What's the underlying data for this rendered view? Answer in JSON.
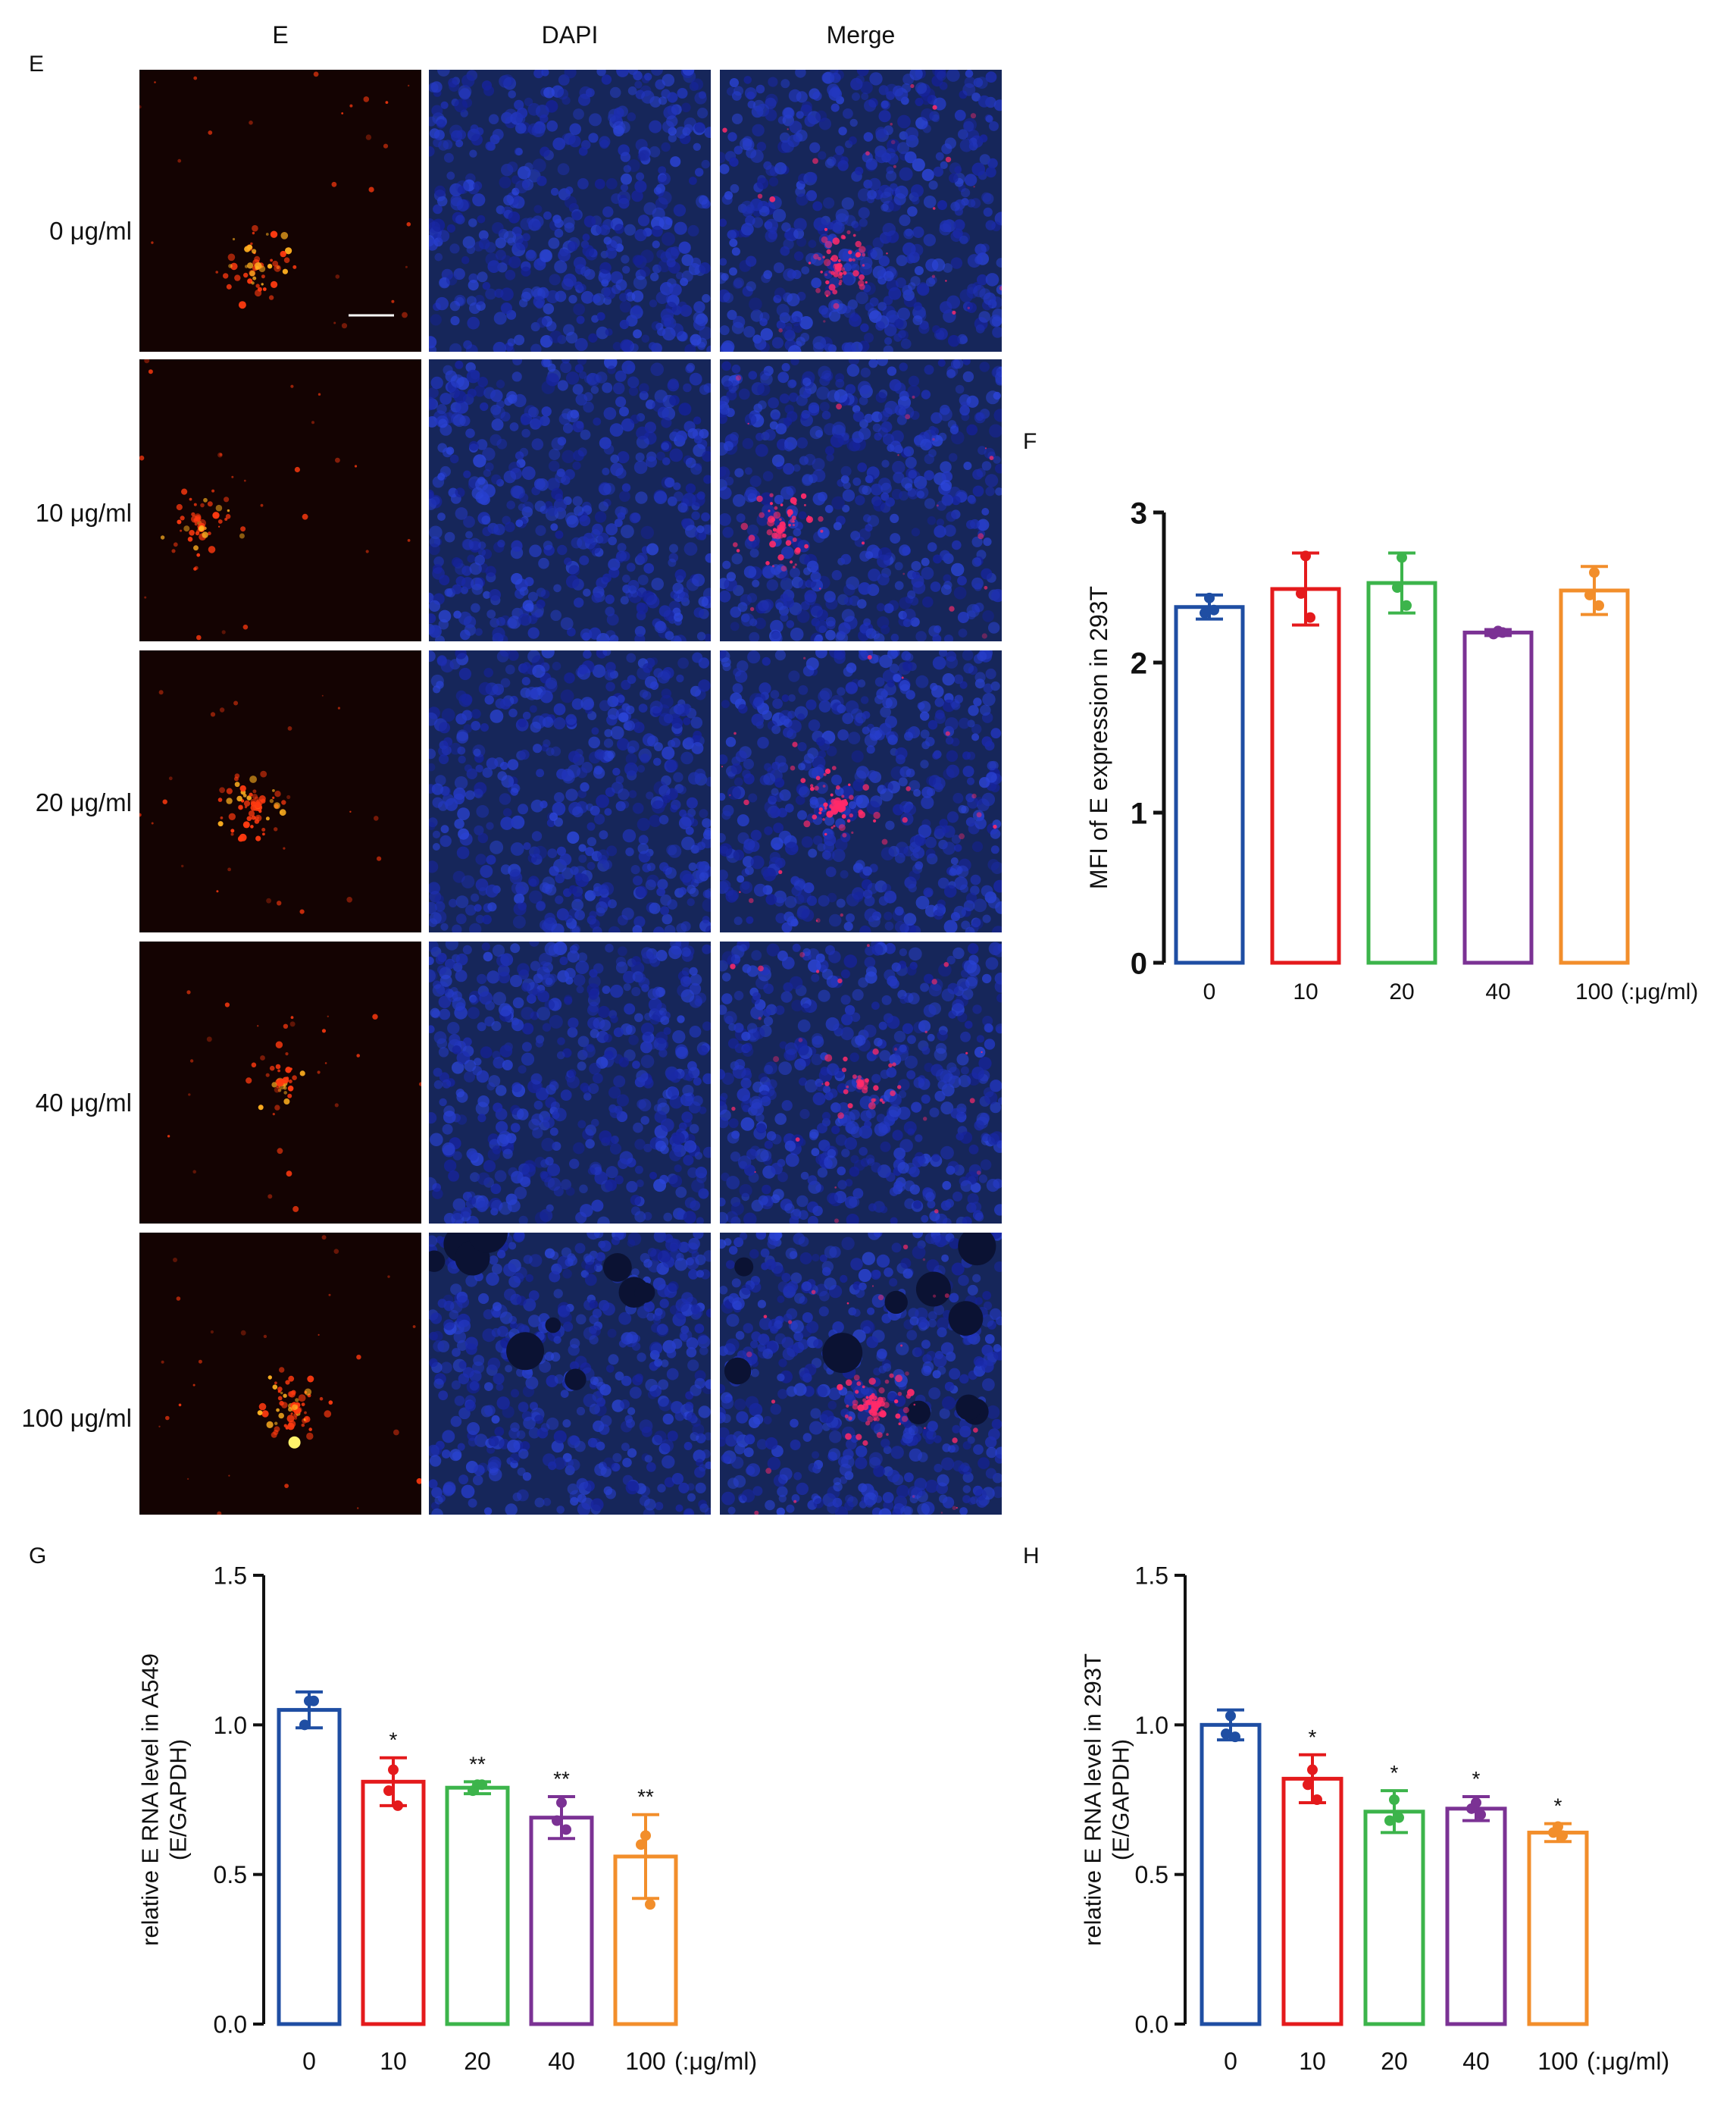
{
  "panel_e": {
    "letter": "E",
    "columns": [
      "E",
      "DAPI",
      "Merge"
    ],
    "rows": [
      "0 μg/ml",
      "10 μg/ml",
      "20 μg/ml",
      "40 μg/ml",
      "100 μg/ml"
    ],
    "channel_colors": {
      "E": "#ff3a10",
      "DAPI": "#2e5ad8",
      "Merge": "#ff2a6a"
    }
  },
  "chart_data": [
    {
      "panel": "F",
      "type": "bar",
      "categories": [
        "0",
        "10",
        "20",
        "40",
        "100"
      ],
      "unit_label": "(:μg/ml)",
      "ylabel": "MFI of E expression in 293T",
      "ylim": [
        0,
        3
      ],
      "yticks": [
        "0",
        "1",
        "2",
        "3"
      ],
      "values": [
        2.37,
        2.49,
        2.53,
        2.2,
        2.48
      ],
      "sd": [
        0.08,
        0.24,
        0.2,
        0.02,
        0.16
      ],
      "points": [
        [
          2.43,
          2.33,
          2.35
        ],
        [
          2.71,
          2.46,
          2.3
        ],
        [
          2.7,
          2.5,
          2.38
        ],
        [
          2.21,
          2.19,
          2.2
        ],
        [
          2.6,
          2.45,
          2.38
        ]
      ],
      "significance": [
        "",
        "",
        "",
        "",
        ""
      ],
      "colors": [
        "#1f4ea3",
        "#e41a1c",
        "#3cb44b",
        "#7b3294",
        "#f28e2b"
      ]
    },
    {
      "panel": "G",
      "type": "bar",
      "categories": [
        "0",
        "10",
        "20",
        "40",
        "100"
      ],
      "unit_label": "(:μg/ml)",
      "ylabel": "relative E RNA level in A549\n(E/GAPDH)",
      "ylim": [
        0,
        1.5
      ],
      "yticks": [
        "0.0",
        "0.5",
        "1.0",
        "1.5"
      ],
      "values": [
        1.05,
        0.81,
        0.79,
        0.69,
        0.56
      ],
      "sd": [
        0.06,
        0.08,
        0.02,
        0.07,
        0.14
      ],
      "points": [
        [
          1.08,
          1.0,
          1.08
        ],
        [
          0.85,
          0.78,
          0.73
        ],
        [
          0.8,
          0.78,
          0.8
        ],
        [
          0.74,
          0.68,
          0.65
        ],
        [
          0.63,
          0.6,
          0.4
        ]
      ],
      "significance": [
        "",
        "*",
        "**",
        "**",
        "**"
      ],
      "colors": [
        "#1f4ea3",
        "#e41a1c",
        "#3cb44b",
        "#7b3294",
        "#f28e2b"
      ]
    },
    {
      "panel": "H",
      "type": "bar",
      "categories": [
        "0",
        "10",
        "20",
        "40",
        "100"
      ],
      "unit_label": "(:μg/ml)",
      "ylabel": "relative E RNA level in 293T\n(E/GAPDH)",
      "ylim": [
        0,
        1.5
      ],
      "yticks": [
        "0.0",
        "0.5",
        "1.0",
        "1.5"
      ],
      "values": [
        1.0,
        0.82,
        0.71,
        0.72,
        0.64
      ],
      "sd": [
        0.05,
        0.08,
        0.07,
        0.04,
        0.03
      ],
      "points": [
        [
          1.03,
          0.97,
          0.96
        ],
        [
          0.85,
          0.8,
          0.75
        ],
        [
          0.75,
          0.68,
          0.69
        ],
        [
          0.74,
          0.72,
          0.7
        ],
        [
          0.66,
          0.64,
          0.63
        ]
      ],
      "significance": [
        "",
        "*",
        "*",
        "*",
        "*"
      ],
      "colors": [
        "#1f4ea3",
        "#e41a1c",
        "#3cb44b",
        "#7b3294",
        "#f28e2b"
      ]
    }
  ]
}
